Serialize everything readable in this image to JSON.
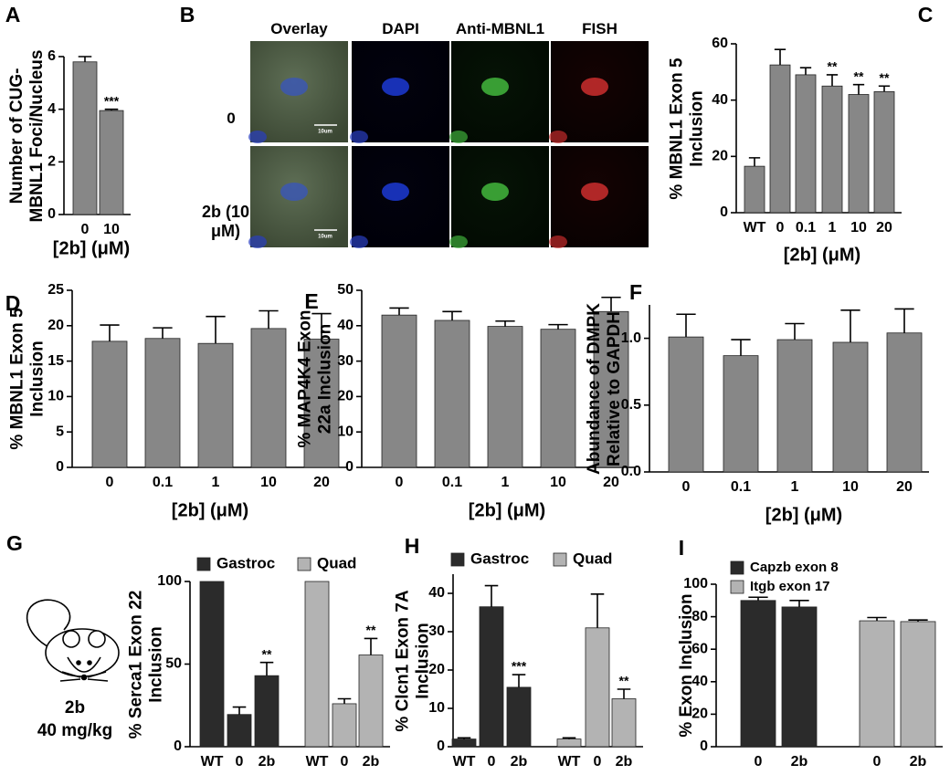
{
  "chart_data": [
    {
      "type": "bar",
      "panel": "A",
      "ylabel": "Number of CUG-MBNL1 Foci/Nucleus",
      "xlabel": "[2b] (μM)",
      "categories": [
        "0",
        "10"
      ],
      "series": [
        {
          "color": "#878787",
          "values": [
            5.8,
            3.95
          ],
          "errors": [
            0.2,
            0.05
          ],
          "significance": [
            null,
            "***"
          ]
        }
      ],
      "ylim": [
        0,
        6
      ],
      "yticks": [
        0,
        2,
        4,
        6
      ]
    },
    {
      "type": "bar",
      "panel": "C",
      "ylabel": "% MBNL1 Exon 5 Inclusion",
      "xlabel": "[2b] (μM)",
      "categories": [
        "WT",
        "0",
        "0.1",
        "1",
        "10",
        "20"
      ],
      "series": [
        {
          "color": "#878787",
          "values": [
            16.5,
            52.5,
            49,
            45,
            42,
            43
          ],
          "errors": [
            3,
            5.5,
            2.5,
            4,
            3.5,
            2
          ],
          "significance": [
            null,
            null,
            null,
            "**",
            "**",
            "**"
          ]
        }
      ],
      "ylim": [
        0,
        60
      ],
      "yticks": [
        0,
        20,
        40,
        60
      ]
    },
    {
      "type": "bar",
      "panel": "D",
      "ylabel": "% MBNL1 Exon 5 Inclusion",
      "xlabel": "[2b] (μM)",
      "categories": [
        "0",
        "0.1",
        "1",
        "10",
        "20"
      ],
      "series": [
        {
          "color": "#878787",
          "values": [
            17.8,
            18.2,
            17.5,
            19.6,
            18.1
          ],
          "errors": [
            2.3,
            1.5,
            3.8,
            2.5,
            3.6
          ]
        }
      ],
      "ylim": [
        0,
        25
      ],
      "yticks": [
        0,
        5,
        10,
        15,
        20,
        25
      ]
    },
    {
      "type": "bar",
      "panel": "E",
      "ylabel": "% MAP4K4 Exon 22a Inclusion",
      "xlabel": "[2b] (μM)",
      "categories": [
        "0",
        "0.1",
        "1",
        "10",
        "20"
      ],
      "series": [
        {
          "color": "#878787",
          "values": [
            43,
            41.5,
            39.8,
            39,
            44
          ],
          "errors": [
            2,
            2.5,
            1.5,
            1.3,
            4
          ]
        }
      ],
      "ylim": [
        0,
        50
      ],
      "yticks": [
        0,
        10,
        20,
        30,
        40,
        50
      ]
    },
    {
      "type": "bar",
      "panel": "F",
      "ylabel": "Abundance of DMPK Relative to GAPDH",
      "xlabel": "[2b] (μM)",
      "categories": [
        "0",
        "0.1",
        "1",
        "10",
        "20"
      ],
      "series": [
        {
          "color": "#878787",
          "values": [
            1.01,
            0.87,
            0.99,
            0.97,
            1.04
          ],
          "errors": [
            0.17,
            0.12,
            0.12,
            0.24,
            0.18
          ]
        }
      ],
      "ylim": [
        0,
        1.25
      ],
      "yticks": [
        {
          "value": 0,
          "label": "0.0"
        },
        {
          "value": 0.5,
          "label": "0.5"
        },
        {
          "value": 1,
          "label": "1.0"
        }
      ]
    },
    {
      "type": "bar",
      "panel": "G",
      "ylabel": "% Serca1 Exon 22 Inclusion",
      "inset_label": [
        "2b",
        "40 mg/kg"
      ],
      "categories": [
        "WT",
        "0",
        "2b",
        "WT",
        "0",
        "2b"
      ],
      "series": [
        {
          "name": "Gastroc",
          "color": "#2b2b2b",
          "values": [
            100,
            19.5,
            43,
            null,
            null,
            null
          ],
          "errors": [
            null,
            4.5,
            8,
            null,
            null,
            null
          ],
          "significance": [
            null,
            null,
            "**",
            null,
            null,
            null
          ]
        },
        {
          "name": "Quad",
          "color": "#b3b3b3",
          "values": [
            null,
            null,
            null,
            100,
            26,
            55.5
          ],
          "errors": [
            null,
            null,
            null,
            null,
            3,
            10
          ],
          "significance": [
            null,
            null,
            null,
            null,
            null,
            "**"
          ]
        }
      ],
      "ylim": [
        0,
        100
      ],
      "yticks": [
        0,
        50,
        100
      ],
      "legend": "top"
    },
    {
      "type": "bar",
      "panel": "H",
      "ylabel": "% Clcn1 Exon 7A Inclusion",
      "categories": [
        "WT",
        "0",
        "2b",
        "WT",
        "0",
        "2b"
      ],
      "series": [
        {
          "name": "Gastroc",
          "color": "#2b2b2b",
          "values": [
            2,
            36.5,
            15.5,
            null,
            null,
            null
          ],
          "errors": [
            0.3,
            5.5,
            3.3,
            null,
            null,
            null
          ],
          "significance": [
            null,
            null,
            "***",
            null,
            null,
            null
          ]
        },
        {
          "name": "Quad",
          "color": "#b3b3b3",
          "values": [
            null,
            null,
            null,
            2,
            31,
            12.5
          ],
          "errors": [
            null,
            null,
            null,
            0.3,
            8.8,
            2.5
          ],
          "significance": [
            null,
            null,
            null,
            null,
            null,
            "**"
          ]
        }
      ],
      "ylim": [
        0,
        45
      ],
      "yticks": [
        0,
        10,
        20,
        30,
        40
      ],
      "legend": "top"
    },
    {
      "type": "bar",
      "panel": "I",
      "ylabel": "% Exon Inclusion",
      "categories": [
        "0",
        "2b",
        "0",
        "2b"
      ],
      "series": [
        {
          "name": "Capzb exon 8",
          "color": "#2b2b2b",
          "values": [
            90,
            86,
            null,
            null
          ],
          "errors": [
            2,
            4,
            null,
            null
          ]
        },
        {
          "name": "Itgb exon 17",
          "color": "#b3b3b3",
          "values": [
            null,
            null,
            77.5,
            77
          ],
          "errors": [
            null,
            null,
            2,
            1
          ]
        }
      ],
      "ylim": [
        0,
        100
      ],
      "yticks": [
        0,
        20,
        40,
        60,
        80,
        100
      ],
      "legend": "top-left"
    }
  ],
  "image_panel": {
    "panel": "B",
    "columns": [
      "Overlay",
      "DAPI",
      "Anti-MBNL1",
      "FISH"
    ],
    "rows": [
      "0",
      "2b (10 μM)"
    ],
    "scale_bar": "10um"
  }
}
